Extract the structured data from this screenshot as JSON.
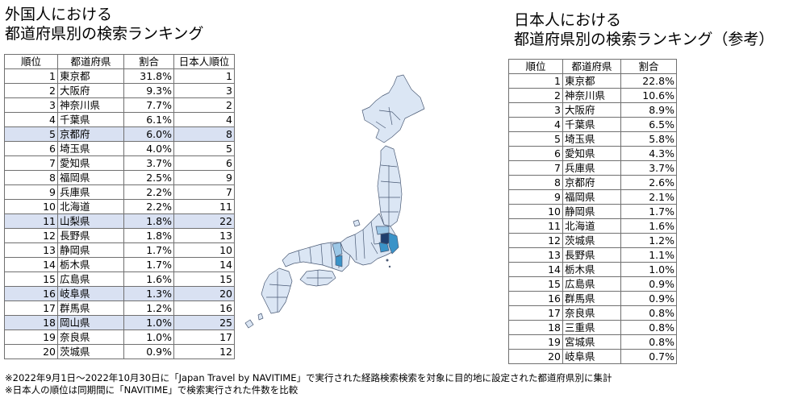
{
  "foreign": {
    "title_line1": "外国人における",
    "title_line2": "都道府県別の検索ランキング",
    "headers": [
      "順位",
      "都道府県",
      "割合",
      "日本人順位"
    ],
    "rows": [
      {
        "rank": "1",
        "pref": "東京都",
        "share": "31.8%",
        "jp_rank": "1",
        "hl": false
      },
      {
        "rank": "2",
        "pref": "大阪府",
        "share": "9.3%",
        "jp_rank": "3",
        "hl": false
      },
      {
        "rank": "3",
        "pref": "神奈川県",
        "share": "7.7%",
        "jp_rank": "2",
        "hl": false
      },
      {
        "rank": "4",
        "pref": "千葉県",
        "share": "6.1%",
        "jp_rank": "4",
        "hl": false
      },
      {
        "rank": "5",
        "pref": "京都府",
        "share": "6.0%",
        "jp_rank": "8",
        "hl": true
      },
      {
        "rank": "6",
        "pref": "埼玉県",
        "share": "4.0%",
        "jp_rank": "5",
        "hl": false
      },
      {
        "rank": "7",
        "pref": "愛知県",
        "share": "3.7%",
        "jp_rank": "6",
        "hl": false
      },
      {
        "rank": "8",
        "pref": "福岡県",
        "share": "2.5%",
        "jp_rank": "9",
        "hl": false
      },
      {
        "rank": "9",
        "pref": "兵庫県",
        "share": "2.2%",
        "jp_rank": "7",
        "hl": false
      },
      {
        "rank": "10",
        "pref": "北海道",
        "share": "2.2%",
        "jp_rank": "11",
        "hl": false
      },
      {
        "rank": "11",
        "pref": "山梨県",
        "share": "1.8%",
        "jp_rank": "22",
        "hl": true
      },
      {
        "rank": "12",
        "pref": "長野県",
        "share": "1.8%",
        "jp_rank": "13",
        "hl": false
      },
      {
        "rank": "13",
        "pref": "静岡県",
        "share": "1.7%",
        "jp_rank": "10",
        "hl": false
      },
      {
        "rank": "14",
        "pref": "栃木県",
        "share": "1.7%",
        "jp_rank": "14",
        "hl": false
      },
      {
        "rank": "15",
        "pref": "広島県",
        "share": "1.6%",
        "jp_rank": "15",
        "hl": false
      },
      {
        "rank": "16",
        "pref": "岐阜県",
        "share": "1.3%",
        "jp_rank": "20",
        "hl": true
      },
      {
        "rank": "17",
        "pref": "群馬県",
        "share": "1.2%",
        "jp_rank": "16",
        "hl": false
      },
      {
        "rank": "18",
        "pref": "岡山県",
        "share": "1.0%",
        "jp_rank": "25",
        "hl": true
      },
      {
        "rank": "19",
        "pref": "奈良県",
        "share": "1.0%",
        "jp_rank": "17",
        "hl": false
      },
      {
        "rank": "20",
        "pref": "茨城県",
        "share": "0.9%",
        "jp_rank": "12",
        "hl": false
      }
    ]
  },
  "japanese": {
    "title_line1": "日本人における",
    "title_line2": "都道府県別の検索ランキング（参考）",
    "headers": [
      "順位",
      "都道府県",
      "割合"
    ],
    "rows": [
      {
        "rank": "1",
        "pref": "東京都",
        "share": "22.8%"
      },
      {
        "rank": "2",
        "pref": "神奈川県",
        "share": "10.6%"
      },
      {
        "rank": "3",
        "pref": "大阪府",
        "share": "8.9%"
      },
      {
        "rank": "4",
        "pref": "千葉県",
        "share": "6.5%"
      },
      {
        "rank": "5",
        "pref": "埼玉県",
        "share": "5.8%"
      },
      {
        "rank": "6",
        "pref": "愛知県",
        "share": "4.3%"
      },
      {
        "rank": "7",
        "pref": "兵庫県",
        "share": "3.7%"
      },
      {
        "rank": "8",
        "pref": "京都府",
        "share": "2.6%"
      },
      {
        "rank": "9",
        "pref": "福岡県",
        "share": "2.1%"
      },
      {
        "rank": "10",
        "pref": "静岡県",
        "share": "1.7%"
      },
      {
        "rank": "11",
        "pref": "北海道",
        "share": "1.6%"
      },
      {
        "rank": "12",
        "pref": "茨城県",
        "share": "1.2%"
      },
      {
        "rank": "13",
        "pref": "長野県",
        "share": "1.1%"
      },
      {
        "rank": "14",
        "pref": "栃木県",
        "share": "1.0%"
      },
      {
        "rank": "15",
        "pref": "広島県",
        "share": "0.9%"
      },
      {
        "rank": "16",
        "pref": "群馬県",
        "share": "0.9%"
      },
      {
        "rank": "17",
        "pref": "奈良県",
        "share": "0.8%"
      },
      {
        "rank": "18",
        "pref": "三重県",
        "share": "0.8%"
      },
      {
        "rank": "19",
        "pref": "宮城県",
        "share": "0.8%"
      },
      {
        "rank": "20",
        "pref": "岐阜県",
        "share": "0.7%"
      }
    ]
  },
  "notes": [
    "※2022年9月1日～2022年10月30日に「Japan  Travel by NAVITIME」で実行された経路検索検索を対象に目的地に設定された都道府県別に集計",
    "※日本人の順位は同期間に「NAVITIME」で検索実行された件数を比較"
  ],
  "colors": {
    "highlight_row": "#d9e1f2",
    "map_base": "#dbe6f4",
    "map_tokyo": "#1f3f6e",
    "map_mid": "#3a93c8",
    "map_light": "#9cc7e6",
    "map_border": "#4a5a75"
  }
}
